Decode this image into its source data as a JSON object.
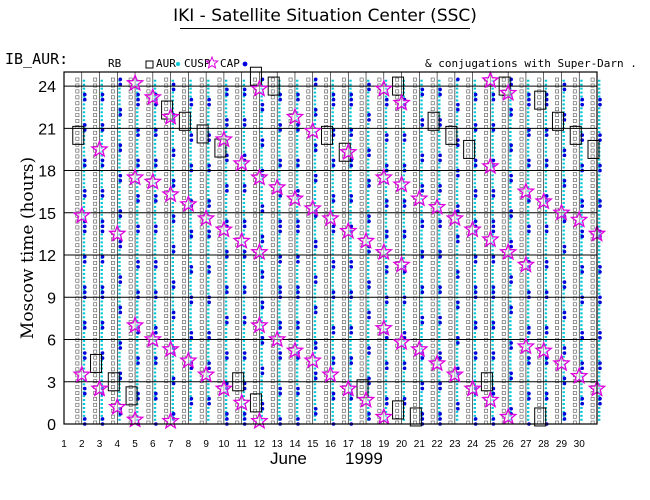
{
  "header": {
    "title": "IKI - Satellite Situation Center (SSC)",
    "series_name": "IB_AUR:",
    "legend": {
      "rb": "RB",
      "aur": "AUR",
      "cusp": "CUSP",
      "cap": "CAP"
    },
    "conjugations": "& conjugations with Super-Darn ."
  },
  "colors": {
    "rb": "#555555",
    "aur": "#0000dd",
    "cusp": "#00c8d8",
    "cap": "#dd00dd",
    "frame": "#000000"
  },
  "chart_data": {
    "type": "scatter",
    "title": "IKI - Satellite Situation Center (SSC)",
    "xlabel": "June        1999",
    "ylabel": "Moscow time (hours)",
    "xlim": [
      1,
      31
    ],
    "ylim": [
      0,
      25
    ],
    "yticks": [
      0,
      3,
      6,
      9,
      12,
      15,
      18,
      21,
      24
    ],
    "xticks": [
      1,
      2,
      3,
      4,
      5,
      6,
      7,
      8,
      9,
      10,
      11,
      12,
      13,
      14,
      15,
      16,
      17,
      18,
      19,
      20,
      21,
      22,
      23,
      24,
      25,
      26,
      27,
      28,
      29,
      30
    ],
    "x_label_month": "June",
    "x_label_year": "1999",
    "categories": [
      "RB",
      "AUR",
      "CUSP",
      "CAP"
    ],
    "cap_events": [
      [
        2,
        3.5
      ],
      [
        2,
        14.8
      ],
      [
        3,
        19.5
      ],
      [
        3,
        2.5
      ],
      [
        4,
        13.5
      ],
      [
        4,
        1.2
      ],
      [
        5,
        24.2
      ],
      [
        5,
        17.5
      ],
      [
        5,
        7
      ],
      [
        5,
        0.3
      ],
      [
        6,
        23.2
      ],
      [
        6,
        17.2
      ],
      [
        6,
        6
      ],
      [
        7,
        21.8
      ],
      [
        7,
        16.3
      ],
      [
        7,
        5.3
      ],
      [
        7,
        0.2
      ],
      [
        8,
        15.6
      ],
      [
        8,
        4.5
      ],
      [
        9,
        14.6
      ],
      [
        9,
        3.5
      ],
      [
        10,
        20.2
      ],
      [
        10,
        13.8
      ],
      [
        10,
        2.5
      ],
      [
        11,
        18.5
      ],
      [
        11,
        13
      ],
      [
        11,
        1.5
      ],
      [
        12,
        23.8
      ],
      [
        12,
        17.5
      ],
      [
        12,
        12.2
      ],
      [
        12,
        7
      ],
      [
        12,
        0.2
      ],
      [
        13,
        16.8
      ],
      [
        13,
        6
      ],
      [
        14,
        21.8
      ],
      [
        14,
        16
      ],
      [
        14,
        5.2
      ],
      [
        15,
        20.8
      ],
      [
        15,
        15.3
      ],
      [
        15,
        4.5
      ],
      [
        16,
        14.6
      ],
      [
        16,
        3.5
      ],
      [
        17,
        19.3
      ],
      [
        17,
        13.7
      ],
      [
        17,
        2.5
      ],
      [
        18,
        13
      ],
      [
        18,
        1.7
      ],
      [
        19,
        23.8
      ],
      [
        19,
        17.5
      ],
      [
        19,
        12.2
      ],
      [
        19,
        6.8
      ],
      [
        19,
        0.5
      ],
      [
        20,
        22.8
      ],
      [
        20,
        17
      ],
      [
        20,
        11.3
      ],
      [
        20,
        5.8
      ],
      [
        21,
        16
      ],
      [
        21,
        5.3
      ],
      [
        22,
        15.4
      ],
      [
        22,
        4.3
      ],
      [
        23,
        14.6
      ],
      [
        23,
        3.5
      ],
      [
        24,
        13.8
      ],
      [
        24,
        2.5
      ],
      [
        25,
        24.4
      ],
      [
        25,
        18.3
      ],
      [
        25,
        13.1
      ],
      [
        25,
        1.7
      ],
      [
        26,
        23.5
      ],
      [
        26,
        12.2
      ],
      [
        26,
        0.5
      ],
      [
        27,
        16.5
      ],
      [
        27,
        11.3
      ],
      [
        27,
        5.5
      ],
      [
        28,
        15.8
      ],
      [
        28,
        5.2
      ],
      [
        29,
        15
      ],
      [
        29,
        4.3
      ],
      [
        30,
        14.5
      ],
      [
        30,
        3.4
      ],
      [
        31,
        13.5
      ],
      [
        31,
        2.5
      ]
    ],
    "rb_boxes": [
      [
        2,
        20.5
      ],
      [
        3,
        4.3
      ],
      [
        4,
        3
      ],
      [
        5,
        2
      ],
      [
        7,
        22.3
      ],
      [
        8,
        21.5
      ],
      [
        9,
        20.6
      ],
      [
        10,
        19.6
      ],
      [
        11,
        3
      ],
      [
        12,
        1.5
      ],
      [
        12,
        24.7
      ],
      [
        13,
        24
      ],
      [
        16,
        20.5
      ],
      [
        17,
        19.3
      ],
      [
        18,
        2.5
      ],
      [
        20,
        1
      ],
      [
        20,
        24
      ],
      [
        21,
        0.5
      ],
      [
        22,
        21.5
      ],
      [
        23,
        20.5
      ],
      [
        24,
        19.5
      ],
      [
        25,
        3
      ],
      [
        26,
        24
      ],
      [
        28,
        0.5
      ],
      [
        28,
        23
      ],
      [
        29,
        21.5
      ],
      [
        30,
        20.5
      ],
      [
        31,
        19.5
      ]
    ]
  }
}
